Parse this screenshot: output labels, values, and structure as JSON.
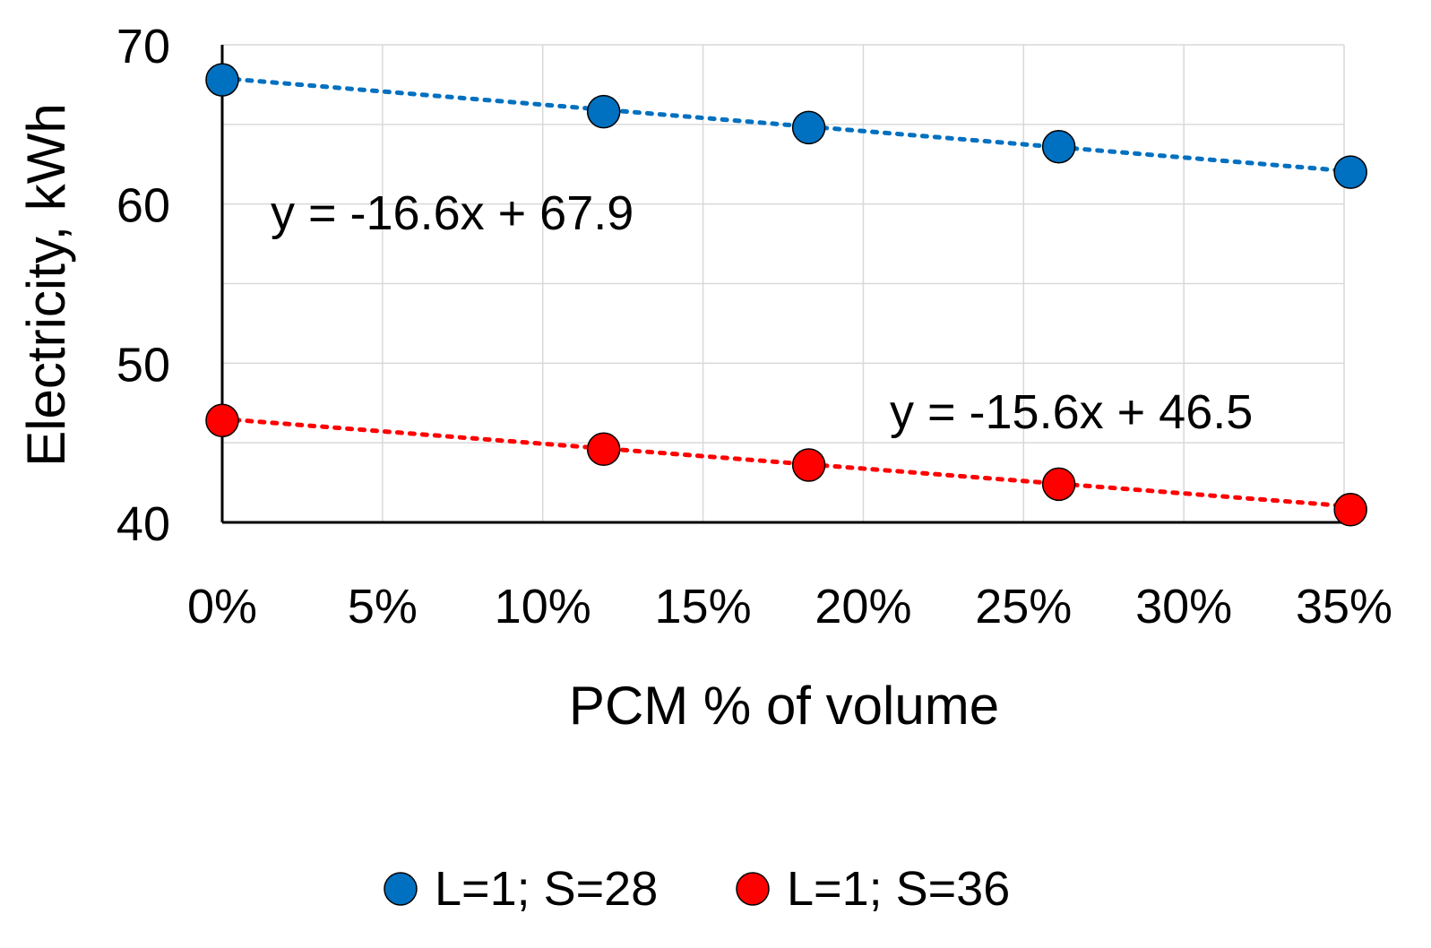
{
  "chart_data": {
    "type": "scatter",
    "title": "",
    "xlabel": "PCM % of volume",
    "ylabel": "Electricity, kWh",
    "xlim": [
      0,
      0.35
    ],
    "ylim": [
      40,
      70
    ],
    "x_ticks": [
      0,
      0.05,
      0.1,
      0.15,
      0.2,
      0.25,
      0.3,
      0.35
    ],
    "x_tick_labels": [
      "0%",
      "5%",
      "10%",
      "15%",
      "20%",
      "25%",
      "30%",
      "35%"
    ],
    "y_ticks": [
      40,
      50,
      60,
      70
    ],
    "y_tick_labels": [
      "40",
      "50",
      "60",
      "70"
    ],
    "y_minor_gridlines": [
      45,
      55,
      65
    ],
    "grid": true,
    "legend_position": "bottom",
    "series": [
      {
        "name": "L=1; S=28",
        "color": "#0070C0",
        "x": [
          0,
          0.119,
          0.183,
          0.261,
          0.352
        ],
        "y": [
          67.8,
          65.8,
          64.8,
          63.6,
          62.0
        ],
        "trendline": {
          "slope": -16.6,
          "intercept": 67.9,
          "label": "y = -16.6x + 67.9"
        }
      },
      {
        "name": "L=1; S=36",
        "color": "#FF0000",
        "x": [
          0,
          0.119,
          0.183,
          0.261,
          0.352
        ],
        "y": [
          46.4,
          44.6,
          43.6,
          42.4,
          40.8
        ],
        "trendline": {
          "slope": -15.6,
          "intercept": 46.5,
          "label": "y = -15.6x + 46.5"
        }
      }
    ]
  }
}
